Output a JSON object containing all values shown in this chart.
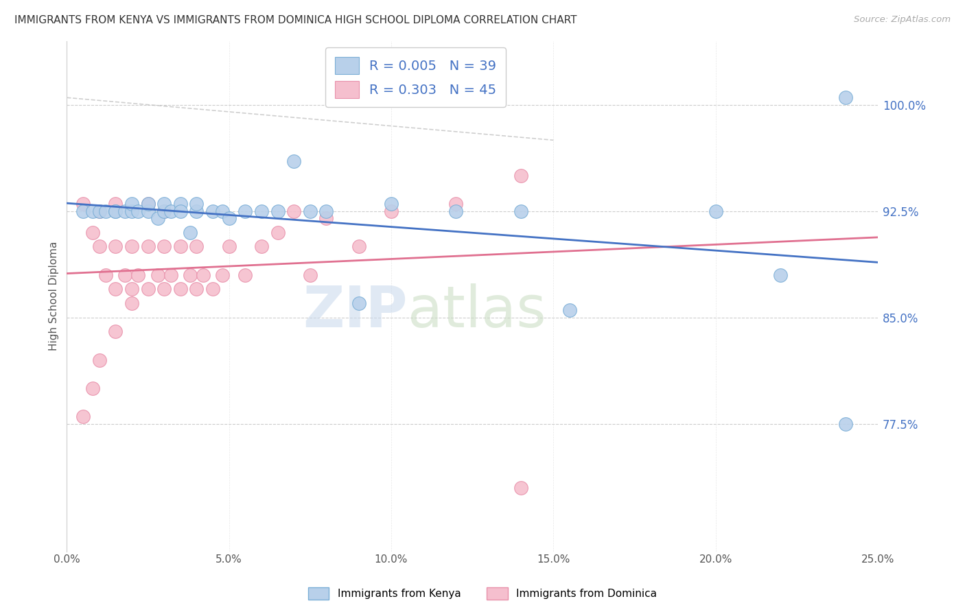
{
  "title": "IMMIGRANTS FROM KENYA VS IMMIGRANTS FROM DOMINICA HIGH SCHOOL DIPLOMA CORRELATION CHART",
  "source": "Source: ZipAtlas.com",
  "ylabel": "High School Diploma",
  "x_min": 0.0,
  "x_max": 0.25,
  "y_min": 0.685,
  "y_max": 1.045,
  "y_ticks": [
    0.775,
    0.85,
    0.925,
    1.0
  ],
  "y_tick_labels": [
    "77.5%",
    "85.0%",
    "92.5%",
    "100.0%"
  ],
  "x_ticks": [
    0.0,
    0.05,
    0.1,
    0.15,
    0.2,
    0.25
  ],
  "x_tick_labels": [
    "0.0%",
    "5.0%",
    "10.0%",
    "15.0%",
    "20.0%",
    "25.0%"
  ],
  "kenya_color": "#b8d0ea",
  "dominica_color": "#f5bfce",
  "kenya_edge": "#7aaed6",
  "dominica_edge": "#e890aa",
  "kenya_R": 0.005,
  "kenya_N": 39,
  "dominica_R": 0.303,
  "dominica_N": 45,
  "kenya_line_color": "#4472c4",
  "dominica_line_color": "#e07090",
  "gray_dash_color": "#bbbbbb",
  "legend_R_color": "#4472c4",
  "kenya_scatter_x": [
    0.005,
    0.008,
    0.01,
    0.012,
    0.015,
    0.015,
    0.018,
    0.02,
    0.02,
    0.022,
    0.025,
    0.025,
    0.028,
    0.03,
    0.03,
    0.032,
    0.035,
    0.035,
    0.038,
    0.04,
    0.04,
    0.045,
    0.048,
    0.05,
    0.055,
    0.06,
    0.065,
    0.07,
    0.075,
    0.08,
    0.09,
    0.1,
    0.12,
    0.14,
    0.155,
    0.2,
    0.22,
    0.24,
    0.24
  ],
  "kenya_scatter_y": [
    0.925,
    0.925,
    0.925,
    0.925,
    0.925,
    0.925,
    0.925,
    0.925,
    0.93,
    0.925,
    0.925,
    0.93,
    0.92,
    0.925,
    0.93,
    0.925,
    0.93,
    0.925,
    0.91,
    0.925,
    0.93,
    0.925,
    0.925,
    0.92,
    0.925,
    0.925,
    0.925,
    0.96,
    0.925,
    0.925,
    0.86,
    0.93,
    0.925,
    0.925,
    0.855,
    0.925,
    0.88,
    1.005,
    0.775
  ],
  "dominica_scatter_x": [
    0.005,
    0.008,
    0.01,
    0.01,
    0.012,
    0.015,
    0.015,
    0.015,
    0.018,
    0.02,
    0.02,
    0.022,
    0.025,
    0.025,
    0.025,
    0.028,
    0.03,
    0.03,
    0.03,
    0.032,
    0.035,
    0.035,
    0.038,
    0.04,
    0.04,
    0.042,
    0.045,
    0.048,
    0.05,
    0.055,
    0.06,
    0.065,
    0.07,
    0.075,
    0.08,
    0.09,
    0.1,
    0.12,
    0.14,
    0.005,
    0.008,
    0.01,
    0.015,
    0.02,
    0.14
  ],
  "dominica_scatter_y": [
    0.93,
    0.91,
    0.9,
    0.925,
    0.88,
    0.87,
    0.9,
    0.93,
    0.88,
    0.87,
    0.9,
    0.88,
    0.87,
    0.9,
    0.93,
    0.88,
    0.87,
    0.9,
    0.925,
    0.88,
    0.87,
    0.9,
    0.88,
    0.87,
    0.9,
    0.88,
    0.87,
    0.88,
    0.9,
    0.88,
    0.9,
    0.91,
    0.925,
    0.88,
    0.92,
    0.9,
    0.925,
    0.93,
    0.95,
    0.78,
    0.8,
    0.82,
    0.84,
    0.86,
    0.73
  ]
}
